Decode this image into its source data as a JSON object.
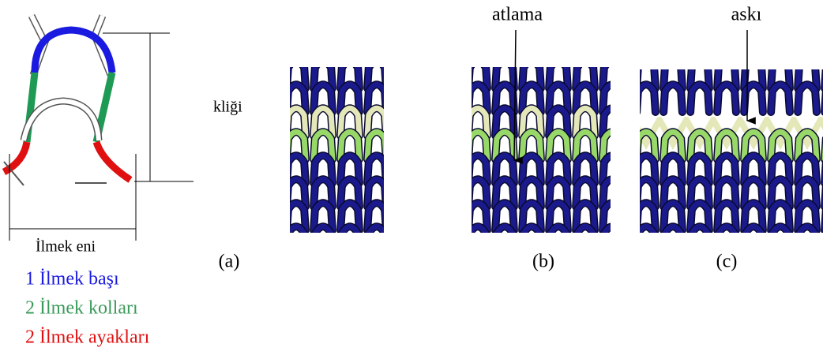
{
  "figure": {
    "dimension_labels": {
      "height": "kliği",
      "width": "İlmek eni"
    },
    "annotations": {
      "skip": "atlama",
      "tuck": "askı"
    },
    "panel_labels": [
      "(a)",
      "(b)",
      "(c)"
    ],
    "legend": [
      {
        "text": "1 İlmek başı",
        "color": "#1a1ae0"
      },
      {
        "text": "2 İlmek kolları",
        "color": "#3a9a5a"
      },
      {
        "text": "2 İlmek ayakları",
        "color": "#e01010"
      }
    ]
  }
}
